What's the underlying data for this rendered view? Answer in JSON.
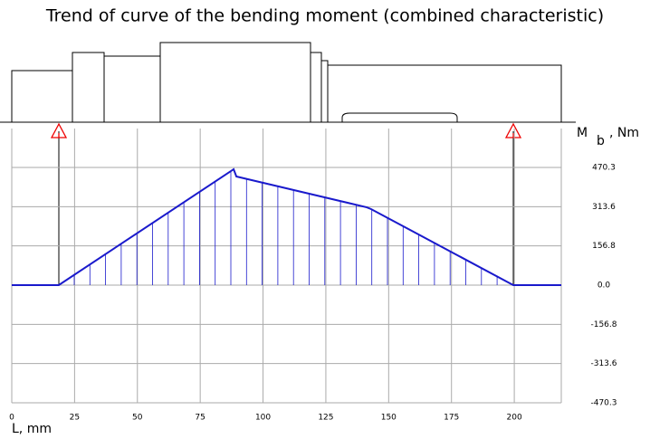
{
  "chart_data": {
    "type": "line",
    "title": "Trend of curve of the bending moment (combined characteristic)",
    "y_label": "M",
    "y_label_sub": "b",
    "y_label_unit": ", Nm",
    "x_label": "L, mm",
    "x": [
      0,
      18.7,
      88.3,
      89.4,
      141.3,
      143,
      199.6,
      218.7
    ],
    "series": [
      {
        "color": "#1a1acc",
        "values": [
          0,
          0,
          463,
          434,
          311,
          304,
          0,
          0
        ]
      }
    ],
    "xlim": [
      0,
      218.7
    ],
    "xticks": [
      0,
      25,
      50,
      75,
      100,
      125,
      150,
      175,
      200
    ],
    "ylim": [
      -470.3,
      470.3
    ],
    "yticks": [
      -470.3,
      -313.6,
      -156.8,
      {
        "value": 0,
        "label": "0.0"
      },
      156.8,
      313.6,
      470.3
    ],
    "grid": true
  }
}
